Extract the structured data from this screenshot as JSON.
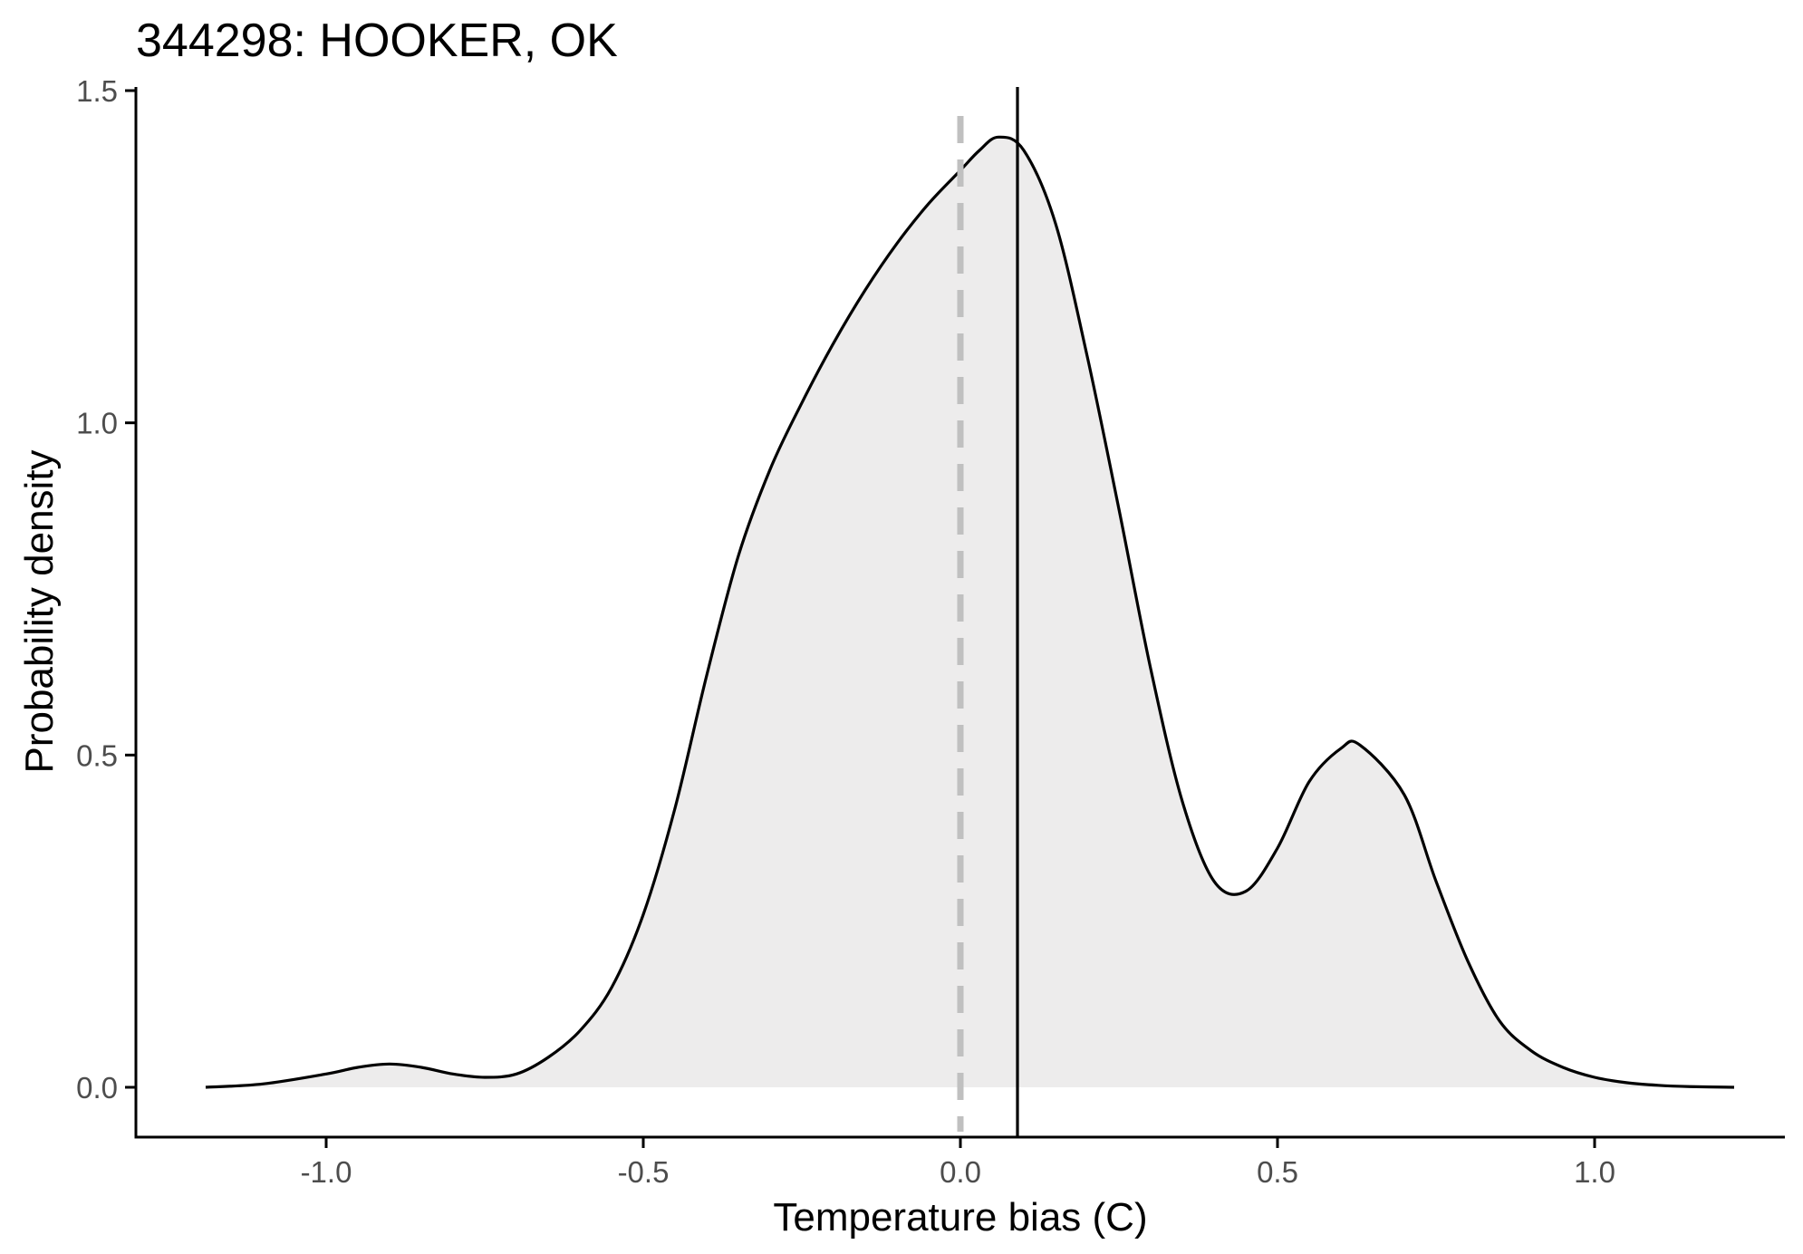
{
  "chart_data": {
    "type": "area",
    "title": "344298: HOOKER, OK",
    "xlabel": "Temperature bias (C)",
    "ylabel": "Probability density",
    "xlim": [
      -1.3,
      1.3
    ],
    "ylim": [
      -0.075,
      1.5
    ],
    "x_ticks": [
      -1.0,
      -0.5,
      0.0,
      0.5,
      1.0
    ],
    "x_tick_labels": [
      "-1.0",
      "-0.5",
      "0.0",
      "0.5",
      "1.0"
    ],
    "y_ticks": [
      0.0,
      0.5,
      1.0,
      1.5
    ],
    "y_tick_labels": [
      "0.0",
      "0.5",
      "1.0",
      "1.5"
    ],
    "grid": false,
    "legend": "none",
    "series": [
      {
        "x": [
          -1.19,
          -1.1,
          -1.0,
          -0.95,
          -0.9,
          -0.85,
          -0.8,
          -0.75,
          -0.7,
          -0.65,
          -0.6,
          -0.55,
          -0.5,
          -0.45,
          -0.4,
          -0.35,
          -0.3,
          -0.25,
          -0.2,
          -0.15,
          -0.1,
          -0.05,
          0.0,
          0.03,
          0.06,
          0.1,
          0.15,
          0.2,
          0.25,
          0.3,
          0.35,
          0.4,
          0.45,
          0.5,
          0.55,
          0.6,
          0.63,
          0.7,
          0.75,
          0.8,
          0.85,
          0.9,
          0.95,
          1.0,
          1.05,
          1.1,
          1.15,
          1.22
        ],
        "y": [
          0.0,
          0.005,
          0.02,
          0.03,
          0.035,
          0.03,
          0.02,
          0.015,
          0.02,
          0.045,
          0.085,
          0.15,
          0.26,
          0.42,
          0.62,
          0.8,
          0.93,
          1.03,
          1.12,
          1.2,
          1.27,
          1.33,
          1.38,
          1.41,
          1.43,
          1.41,
          1.3,
          1.1,
          0.87,
          0.63,
          0.43,
          0.31,
          0.295,
          0.36,
          0.46,
          0.51,
          0.515,
          0.44,
          0.31,
          0.19,
          0.1,
          0.055,
          0.03,
          0.015,
          0.007,
          0.003,
          0.001,
          0.0
        ]
      }
    ],
    "reference_lines": [
      {
        "x": 0.0,
        "style": "dashed",
        "color": "#c0c0c0"
      },
      {
        "x": 0.09,
        "style": "solid",
        "color": "#000000"
      }
    ],
    "colors": {
      "fill": "#edecec",
      "outline": "#000000",
      "axis": "#000000",
      "tick_label": "#4d4d4d"
    }
  }
}
